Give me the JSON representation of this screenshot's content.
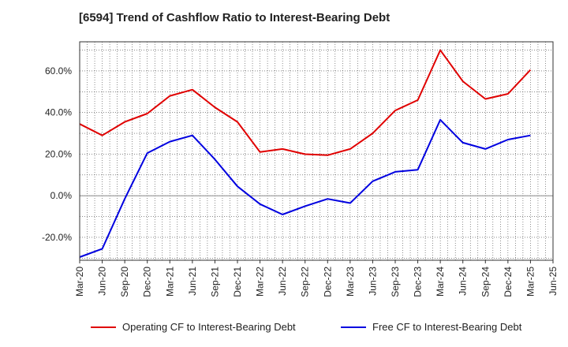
{
  "chart_data": {
    "type": "line",
    "title": "[6594]  Trend of Cashflow Ratio to Interest-Bearing Debt",
    "x_tick_labels": [
      "Mar-20",
      "Jun-20",
      "Sep-20",
      "Dec-20",
      "Mar-21",
      "Jun-21",
      "Sep-21",
      "Dec-21",
      "Mar-22",
      "Jun-22",
      "Sep-22",
      "Dec-22",
      "Mar-23",
      "Jun-23",
      "Sep-23",
      "Dec-23",
      "Mar-24",
      "Jun-24",
      "Sep-24",
      "Dec-24",
      "Mar-25",
      "Jun-25"
    ],
    "y_ticks": [
      -20,
      0,
      20,
      40,
      60
    ],
    "y_tick_labels": [
      "-20.0%",
      "0.0%",
      "20.0%",
      "40.0%",
      "60.0%"
    ],
    "ylim": [
      -31,
      74
    ],
    "grid": true,
    "legend_position": "bottom",
    "series": [
      {
        "name": "Operating CF to Interest-Bearing Debt",
        "color": "#e00000",
        "values": [
          34.5,
          29,
          35.5,
          39.5,
          48,
          51,
          42.5,
          35.5,
          21,
          22.5,
          20,
          19.5,
          22.5,
          30,
          41,
          46,
          70,
          55,
          46.5,
          49,
          60.5
        ]
      },
      {
        "name": "Free CF to Interest-Bearing Debt",
        "color": "#0000e0",
        "values": [
          -29.5,
          -25.5,
          -1.5,
          20.5,
          26,
          29,
          17.5,
          4.5,
          -4,
          -9,
          -5,
          -1.5,
          -3.5,
          7,
          11.5,
          12.5,
          36.5,
          25.5,
          22.5,
          27,
          29
        ]
      }
    ]
  }
}
